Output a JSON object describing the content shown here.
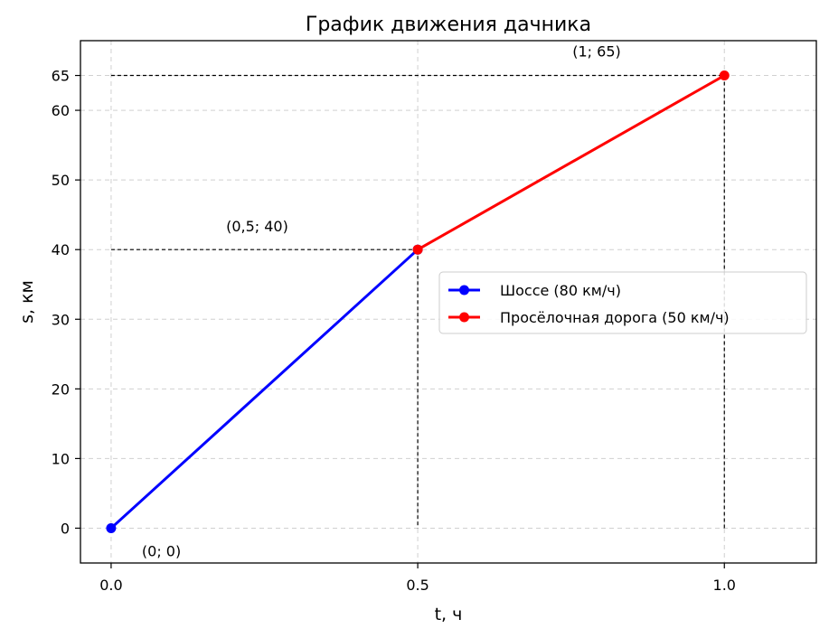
{
  "chart_data": {
    "type": "line",
    "title": "График движения дачника",
    "xlabel": "t, ч",
    "ylabel": "s, км",
    "xlim": [
      -0.05,
      1.15
    ],
    "ylim": [
      -5,
      70
    ],
    "xticks": [
      0.0,
      0.5,
      1.0
    ],
    "xtick_labels": [
      "0.0",
      "0.5",
      "1.0"
    ],
    "yticks": [
      0,
      10,
      20,
      30,
      40,
      50,
      60,
      65
    ],
    "ytick_labels": [
      "0",
      "10",
      "20",
      "30",
      "40",
      "50",
      "60",
      "65"
    ],
    "grid": true,
    "legend_position": "center-right",
    "series": [
      {
        "name": "Шоссе (80 км/ч)",
        "color": "#0000ff",
        "x": [
          0,
          0.5
        ],
        "y": [
          0,
          40
        ]
      },
      {
        "name": "Просёлочная дорога (50 км/ч)",
        "color": "#ff0000",
        "x": [
          0.5,
          1.0
        ],
        "y": [
          40,
          65
        ]
      }
    ],
    "guide_points": [
      {
        "x": 0.5,
        "y": 40
      },
      {
        "x": 1.0,
        "y": 65
      }
    ],
    "annotations": [
      {
        "text": "(0; 0)",
        "x": 0.0,
        "y": 0
      },
      {
        "text": "(0,5; 40)",
        "x": 0.5,
        "y": 40
      },
      {
        "text": "(1; 65)",
        "x": 1.0,
        "y": 65
      }
    ]
  }
}
